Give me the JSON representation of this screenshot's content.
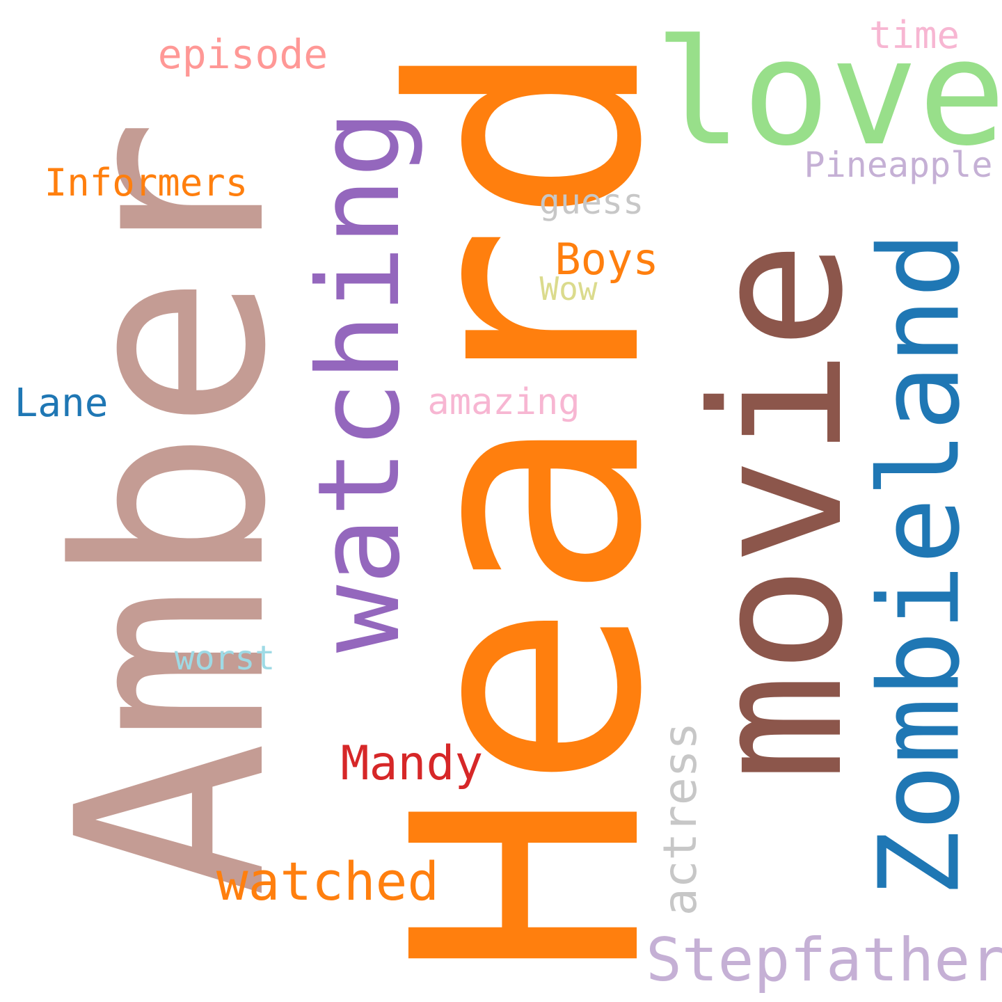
{
  "words": {
    "heard": {
      "text": "Heard",
      "color": "#ff7f0e"
    },
    "amber": {
      "text": "Amber",
      "color": "#c49c94"
    },
    "movie": {
      "text": "movie",
      "color": "#8c564b"
    },
    "love": {
      "text": "love",
      "color": "#98df8a"
    },
    "watching": {
      "text": "watching",
      "color": "#9467bd"
    },
    "zombieland": {
      "text": "Zombieland",
      "color": "#1f77b4"
    },
    "stepfather": {
      "text": "Stepfather",
      "color": "#c5b0d5"
    },
    "watched": {
      "text": "watched",
      "color": "#ff7f0e"
    },
    "mandy": {
      "text": "Mandy",
      "color": "#d62728"
    },
    "actress": {
      "text": "actress",
      "color": "#c7c7c7"
    },
    "episode": {
      "text": "episode",
      "color": "#ff9896"
    },
    "informers": {
      "text": "Informers",
      "color": "#ff7f0e"
    },
    "time": {
      "text": "time",
      "color": "#f7b6d2"
    },
    "pineapple": {
      "text": "Pineapple",
      "color": "#c5b0d5"
    },
    "guess": {
      "text": "guess",
      "color": "#c7c7c7"
    },
    "boys": {
      "text": "Boys",
      "color": "#ff7f0e"
    },
    "wow": {
      "text": "Wow",
      "color": "#dbdb8d"
    },
    "amazing": {
      "text": "amazing",
      "color": "#f7b6d2"
    },
    "lane": {
      "text": "Lane",
      "color": "#1f77b4"
    },
    "worst": {
      "text": "worst",
      "color": "#9edae5"
    }
  }
}
